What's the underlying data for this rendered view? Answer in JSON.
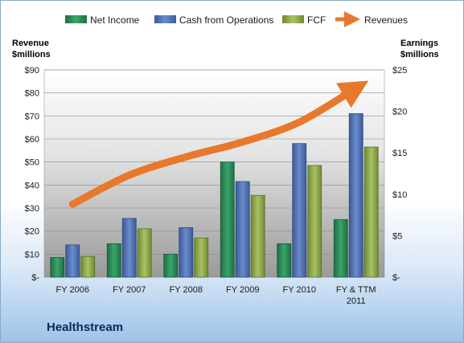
{
  "company": "Healthstream",
  "legend": {
    "net_income": "Net Income",
    "cash_ops": "Cash from Operations",
    "fcf": "FCF",
    "revenues": "Revenues"
  },
  "left_axis_title": [
    "Revenue",
    "$millions"
  ],
  "right_axis_title": [
    "Earnings",
    "$millions"
  ],
  "colors": {
    "net_income": "#2e8b57",
    "cash_ops": "#4f6fb0",
    "fcf": "#8fa84a",
    "revenues": "#e8782c"
  },
  "chart_data": {
    "type": "bar",
    "categories": [
      [
        "FY 2006"
      ],
      [
        "FY 2007"
      ],
      [
        "FY 2008"
      ],
      [
        "FY 2009"
      ],
      [
        "FY 2010"
      ],
      [
        "FY & TTM",
        "2011"
      ]
    ],
    "left_axis": {
      "ylim": [
        0,
        90
      ],
      "ticks": [
        "$-",
        "$10",
        "$20",
        "$30",
        "$40",
        "$50",
        "$60",
        "$70",
        "$80",
        "$90"
      ]
    },
    "right_axis": {
      "ylim": [
        0,
        25
      ],
      "ticks": [
        "$-",
        "$5",
        "$10",
        "$15",
        "$20",
        "$25"
      ]
    },
    "series": [
      {
        "name": "Net Income",
        "axis": "left",
        "values": [
          8.5,
          14.5,
          10,
          50,
          14.5,
          25
        ]
      },
      {
        "name": "Cash from Operations",
        "axis": "left",
        "values": [
          14,
          25.5,
          21.5,
          41.5,
          58,
          71
        ]
      },
      {
        "name": "FCF",
        "axis": "left",
        "values": [
          9,
          21,
          17,
          35.5,
          48.5,
          56.5
        ]
      },
      {
        "name": "Revenues",
        "type": "line",
        "axis": "right",
        "values": [
          8.8,
          12.3,
          14.5,
          16.3,
          18.7,
          22.8
        ]
      }
    ],
    "grid": true,
    "legend_position": "top"
  }
}
